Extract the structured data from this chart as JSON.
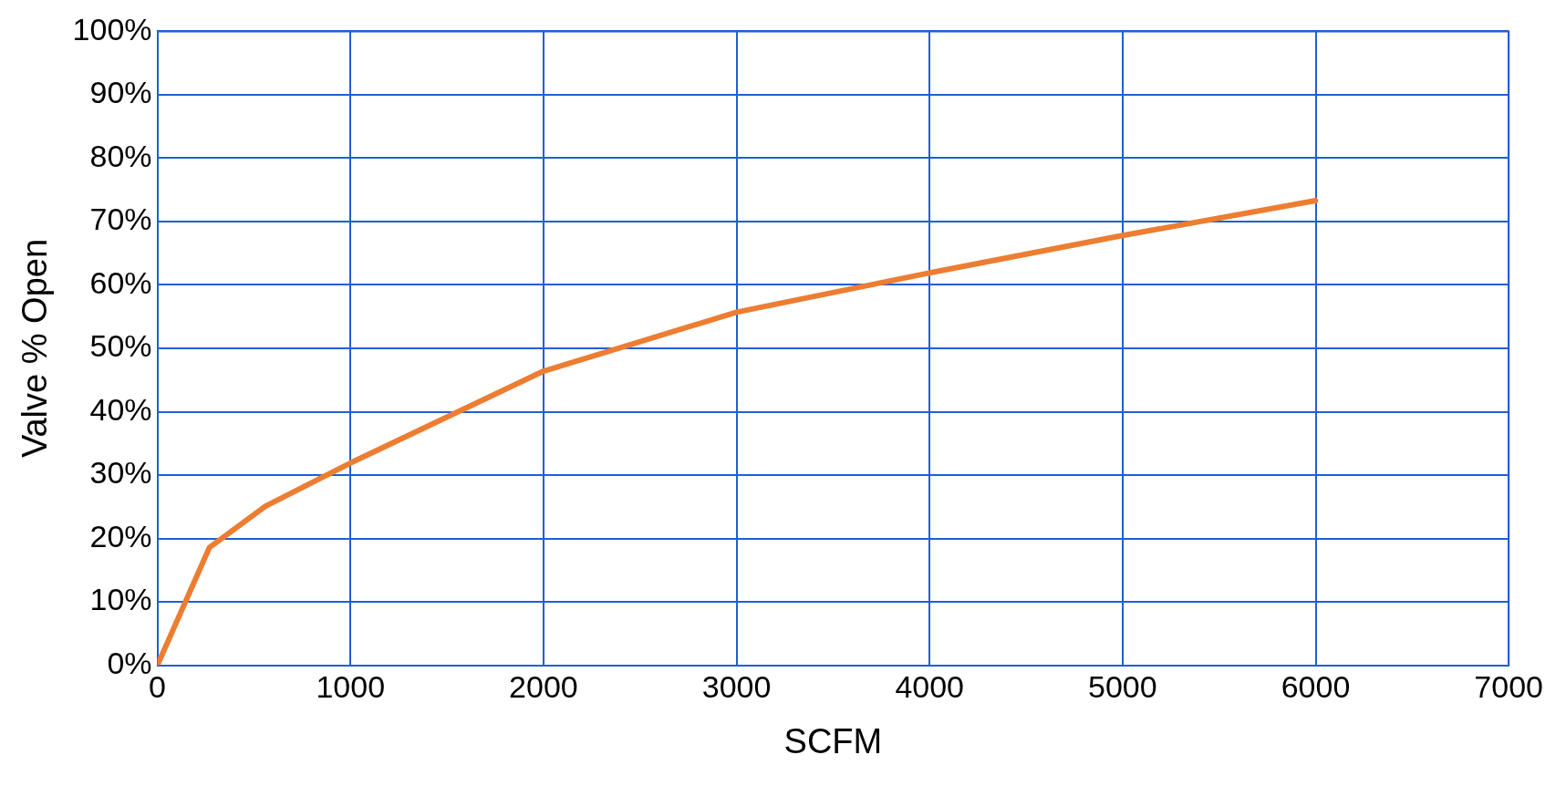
{
  "chart_data": {
    "type": "line",
    "xlabel": "SCFM",
    "ylabel": "Valve % Open",
    "x": [
      0,
      270,
      560,
      1000,
      2000,
      3000,
      4000,
      5000,
      6000
    ],
    "series": [
      {
        "color": "#ed7d31",
        "values": [
          0,
          18.6,
          25.1,
          31.9,
          46.4,
          55.7,
          61.9,
          67.8,
          73.3
        ]
      }
    ],
    "xlim": [
      0,
      7000
    ],
    "xticks": [
      0,
      1000,
      2000,
      3000,
      4000,
      5000,
      6000,
      7000
    ],
    "ylim": [
      0,
      100
    ],
    "yticks": [
      {
        "value": 0,
        "label": "0%"
      },
      {
        "value": 10,
        "label": "10%"
      },
      {
        "value": 20,
        "label": "20%"
      },
      {
        "value": 30,
        "label": "30%"
      },
      {
        "value": 40,
        "label": "40%"
      },
      {
        "value": 50,
        "label": "50%"
      },
      {
        "value": 60,
        "label": "60%"
      },
      {
        "value": 70,
        "label": "70%"
      },
      {
        "value": 80,
        "label": "80%"
      },
      {
        "value": 90,
        "label": "90%"
      },
      {
        "value": 100,
        "label": "100%"
      }
    ],
    "grid": true,
    "legend": false,
    "marker": "none",
    "line_style": "solid"
  }
}
